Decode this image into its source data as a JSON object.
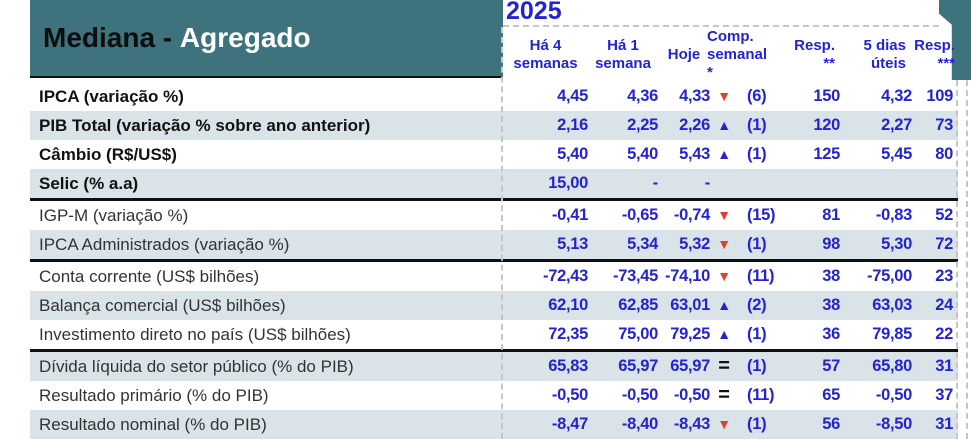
{
  "title": {
    "black": "Mediana - ",
    "white": "Agregado"
  },
  "year": "2025",
  "colors": {
    "band_teal": "#3e737e",
    "stripe": "#d9e3e8",
    "value_blue": "#2323d3",
    "down_red": "#e0402f",
    "divider_black": "#101010"
  },
  "trend_icons": {
    "down": "▼",
    "up": "▲",
    "equal": "="
  },
  "header": {
    "cols": [
      {
        "line1": "Há 4",
        "line2": "semanas"
      },
      {
        "line1": "Há 1",
        "line2": "semana"
      },
      {
        "line1": "Hoje",
        "line2": ""
      },
      {
        "line1": "Comp.",
        "line2": "semanal *"
      },
      {
        "line1": "Resp.",
        "line2": "**"
      },
      {
        "line1": "5 dias",
        "line2": "úteis"
      },
      {
        "line1": "Resp.",
        "line2": "***"
      }
    ]
  },
  "rows": [
    {
      "label": "IPCA (variação %)",
      "emphasis": true,
      "ha4": "4,45",
      "ha1": "4,36",
      "hoje": "4,33",
      "trend": "down",
      "comp": "(6)",
      "resp2": "150",
      "dias5": "4,32",
      "resp3": "109",
      "divider_after": false
    },
    {
      "label": "PIB Total (variação % sobre ano anterior)",
      "emphasis": true,
      "ha4": "2,16",
      "ha1": "2,25",
      "hoje": "2,26",
      "trend": "up",
      "comp": "(1)",
      "resp2": "120",
      "dias5": "2,27",
      "resp3": "73",
      "divider_after": false
    },
    {
      "label": "Câmbio (R$/US$)",
      "emphasis": true,
      "ha4": "5,40",
      "ha1": "5,40",
      "hoje": "5,43",
      "trend": "up",
      "comp": "(1)",
      "resp2": "125",
      "dias5": "5,45",
      "resp3": "80",
      "divider_after": false
    },
    {
      "label": "Selic (% a.a)",
      "emphasis": true,
      "ha4": "15,00",
      "ha1": "-",
      "hoje": "-",
      "trend": "",
      "comp": "",
      "resp2": "",
      "dias5": "",
      "resp3": "",
      "divider_after": true
    },
    {
      "label": "IGP-M (variação %)",
      "emphasis": false,
      "ha4": "-0,41",
      "ha1": "-0,65",
      "hoje": "-0,74",
      "trend": "down",
      "comp": "(15)",
      "resp2": "81",
      "dias5": "-0,83",
      "resp3": "52",
      "divider_after": false
    },
    {
      "label": "IPCA Administrados (variação %)",
      "emphasis": false,
      "ha4": "5,13",
      "ha1": "5,34",
      "hoje": "5,32",
      "trend": "down",
      "comp": "(1)",
      "resp2": "98",
      "dias5": "5,30",
      "resp3": "72",
      "divider_after": true
    },
    {
      "label": "Conta corrente (US$ bilhões)",
      "emphasis": false,
      "ha4": "-72,43",
      "ha1": "-73,45",
      "hoje": "-74,10",
      "trend": "down",
      "comp": "(11)",
      "resp2": "38",
      "dias5": "-75,00",
      "resp3": "23",
      "divider_after": false
    },
    {
      "label": "Balança comercial (US$ bilhões)",
      "emphasis": false,
      "ha4": "62,10",
      "ha1": "62,85",
      "hoje": "63,01",
      "trend": "up",
      "comp": "(2)",
      "resp2": "38",
      "dias5": "63,03",
      "resp3": "24",
      "divider_after": false
    },
    {
      "label": "Investimento direto no país (US$ bilhões)",
      "emphasis": false,
      "ha4": "72,35",
      "ha1": "75,00",
      "hoje": "79,25",
      "trend": "up",
      "comp": "(1)",
      "resp2": "36",
      "dias5": "79,85",
      "resp3": "22",
      "divider_after": true
    },
    {
      "label": "Dívida líquida do setor público (% do PIB)",
      "emphasis": false,
      "ha4": "65,83",
      "ha1": "65,97",
      "hoje": "65,97",
      "trend": "equal",
      "comp": "(1)",
      "resp2": "57",
      "dias5": "65,80",
      "resp3": "31",
      "divider_after": false
    },
    {
      "label": "Resultado primário (% do PIB)",
      "emphasis": false,
      "ha4": "-0,50",
      "ha1": "-0,50",
      "hoje": "-0,50",
      "trend": "equal",
      "comp": "(11)",
      "resp2": "65",
      "dias5": "-0,50",
      "resp3": "37",
      "divider_after": false
    },
    {
      "label": "Resultado nominal (% do PIB)",
      "emphasis": false,
      "ha4": "-8,47",
      "ha1": "-8,40",
      "hoje": "-8,43",
      "trend": "down",
      "comp": "(1)",
      "resp2": "56",
      "dias5": "-8,50",
      "resp3": "31",
      "divider_after": false
    }
  ]
}
